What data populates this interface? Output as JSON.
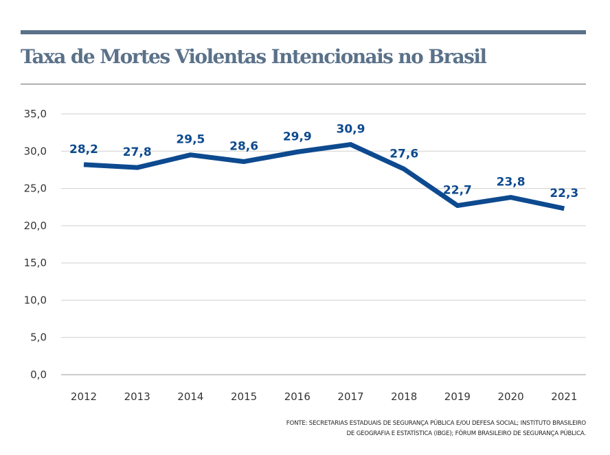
{
  "chart_data": {
    "type": "line",
    "title": "Taxa de Mortes Violentas Intencionais no Brasil",
    "x": [
      "2012",
      "2013",
      "2014",
      "2015",
      "2016",
      "2017",
      "2018",
      "2019",
      "2020",
      "2021"
    ],
    "series": [
      {
        "name": "Taxa de Mortes Violentas Intencionais",
        "values": [
          28.2,
          27.8,
          29.5,
          28.6,
          29.9,
          30.9,
          27.6,
          22.7,
          23.8,
          22.3
        ],
        "labels": [
          "28,2",
          "27,8",
          "29,5",
          "28,6",
          "29,9",
          "30,9",
          "27,6",
          "22,7",
          "23,8",
          "22,3"
        ]
      }
    ],
    "yticks": [
      "0,0",
      "5,0",
      "10,0",
      "15,0",
      "20,0",
      "25,0",
      "30,0",
      "35,0"
    ],
    "ytick_values": [
      0,
      5,
      10,
      15,
      20,
      25,
      30,
      35
    ],
    "ylim": [
      0,
      35
    ],
    "xlabel": "",
    "ylabel": "",
    "grid": true,
    "line_color": "#0d4a8f"
  },
  "source": {
    "line1": "FONTE: SECRETARIAS ESTADUAIS DE SEGURANÇA PÚBLICA E/OU DEFESA SOCIAL; INSTITUTO BRASILEIRO",
    "line2": "DE GEOGRAFIA E ESTATÍSTICA (IBGE); FÓRUM BRASILEIRO DE SEGURANÇA PÚBLICA."
  }
}
